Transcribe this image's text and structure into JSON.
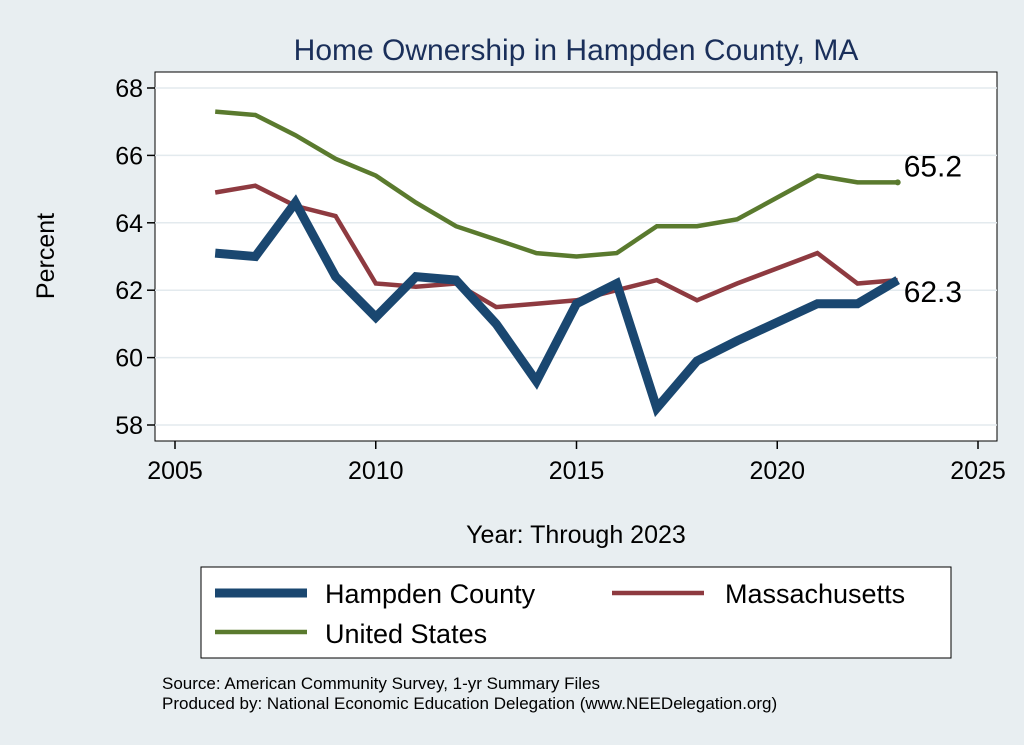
{
  "chart_data": {
    "type": "line",
    "title": "Home Ownership in Hampden County, MA",
    "xlabel": "Year: Through 2023",
    "ylabel": "Percent",
    "xlim": [
      2005,
      2025
    ],
    "ylim": [
      58,
      68
    ],
    "xticks": [
      "2005",
      "2010",
      "2015",
      "2020",
      "2025"
    ],
    "yticks": [
      "58",
      "60",
      "62",
      "64",
      "66",
      "68"
    ],
    "grid": true,
    "legend_position": "bottom",
    "x": [
      2006,
      2007,
      2008,
      2009,
      2010,
      2011,
      2012,
      2013,
      2014,
      2015,
      2016,
      2017,
      2018,
      2019,
      2021,
      2022,
      2023
    ],
    "series": [
      {
        "name": "Hampden County",
        "color": "#1a4770",
        "values": [
          63.1,
          63.0,
          64.6,
          62.4,
          61.2,
          62.4,
          62.3,
          61.0,
          59.3,
          61.6,
          62.2,
          58.5,
          59.9,
          60.5,
          61.6,
          61.6,
          62.3
        ]
      },
      {
        "name": "Massachusetts",
        "color": "#8e3a40",
        "values": [
          64.9,
          65.1,
          64.5,
          64.2,
          62.2,
          62.1,
          62.2,
          61.5,
          61.6,
          61.7,
          62.0,
          62.3,
          61.7,
          62.2,
          63.1,
          62.2,
          62.3
        ]
      },
      {
        "name": "United States",
        "color": "#5a7a2e",
        "values": [
          67.3,
          67.2,
          66.6,
          65.9,
          65.4,
          64.6,
          63.9,
          63.5,
          63.1,
          63.0,
          63.1,
          63.9,
          63.9,
          64.1,
          65.4,
          65.2,
          65.2
        ]
      }
    ],
    "end_labels": [
      {
        "series": "United States",
        "text": "65.2"
      },
      {
        "series": "Hampden County",
        "text": "62.3"
      }
    ],
    "notes": [
      "Source: American Community Survey, 1-yr Summary Files",
      "Produced by: National Economic Education Delegation (www.NEEDelegation.org)"
    ]
  }
}
